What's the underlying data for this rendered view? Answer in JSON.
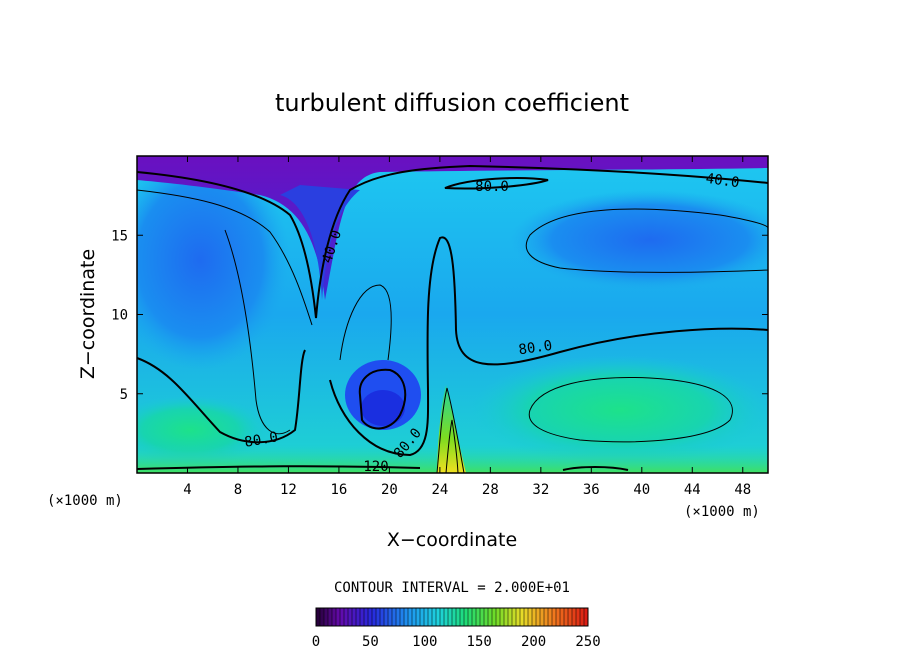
{
  "chart_data": {
    "type": "contour",
    "title": "turbulent diffusion coefficient",
    "xlabel": "X−coordinate",
    "ylabel": "Z−coordinate",
    "x_unit_left": "(×1000 m)",
    "x_unit_right": "(×1000 m)",
    "xlim": [
      0,
      50
    ],
    "ylim": [
      0,
      20
    ],
    "x_ticks": [
      4,
      8,
      12,
      16,
      20,
      24,
      28,
      32,
      36,
      40,
      44,
      48
    ],
    "y_ticks": [
      5,
      10,
      15
    ],
    "contour_labels": [
      "40.0",
      "80.0",
      "40.0",
      "80.0",
      "80.0",
      "80.0",
      "120"
    ],
    "contour_interval_text": "CONTOUR INTERVAL = 2.000E+01",
    "colorbar": {
      "min": 0,
      "max": 250,
      "ticks": [
        0,
        50,
        100,
        150,
        200,
        250
      ]
    }
  }
}
